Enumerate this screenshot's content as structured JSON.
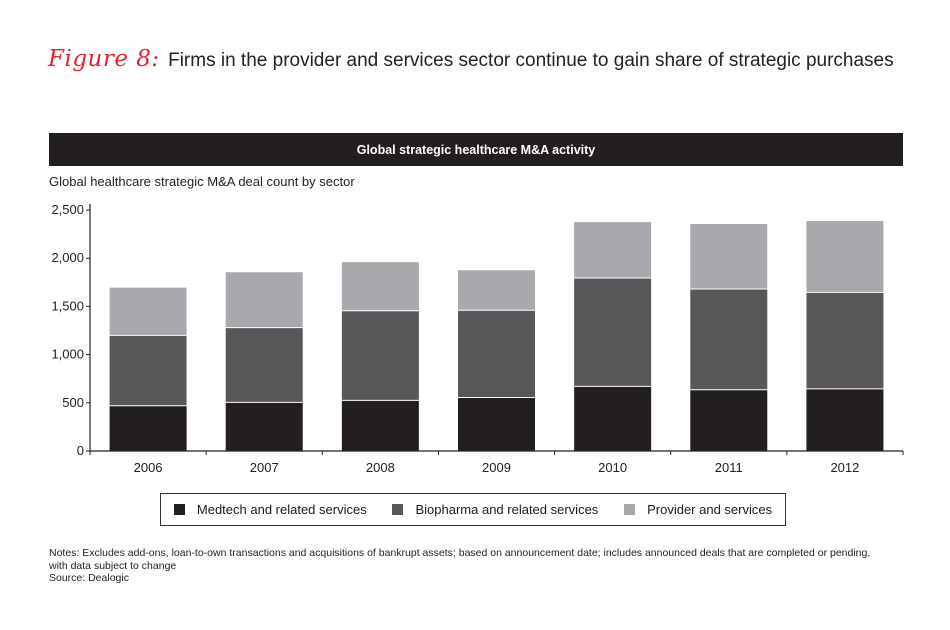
{
  "header": {
    "figure_label": "Figure 8:",
    "title": "Firms in the provider and services sector continue to gain share of strategic purchases"
  },
  "banner": "Global strategic healthcare M&A activity",
  "subtitle": "Global healthcare strategic M&A deal count by sector",
  "colors": {
    "medtech": "#231f20",
    "biopharma": "#58585a",
    "provider": "#a7a9ac",
    "banner_bg": "#231f20",
    "figure_label": "#e0262b"
  },
  "chart_data": {
    "type": "bar",
    "stacked": true,
    "categories": [
      "2006",
      "2007",
      "2008",
      "2009",
      "2010",
      "2011",
      "2012"
    ],
    "series": [
      {
        "name": "Medtech and related services",
        "values": [
          470,
          505,
          525,
          555,
          670,
          635,
          645
        ]
      },
      {
        "name": "Biopharma and related services",
        "values": [
          730,
          775,
          930,
          905,
          1125,
          1045,
          1000
        ]
      },
      {
        "name": "Provider and services",
        "values": [
          500,
          580,
          510,
          420,
          585,
          680,
          745
        ]
      }
    ],
    "yticks": [
      "0",
      "500",
      "1,000",
      "1,500",
      "2,000",
      "2,500"
    ],
    "ylim": [
      0,
      2500
    ],
    "ytick_step": 500,
    "grid": false,
    "legend_position": "bottom"
  },
  "notes": {
    "line1": "Notes: Excludes add-ons, loan-to-own transactions and acquisitions of bankrupt assets; based on announcement date; includes announced deals that are completed or pending,",
    "line2": "with data subject to change",
    "source": "Source: Dealogic"
  }
}
